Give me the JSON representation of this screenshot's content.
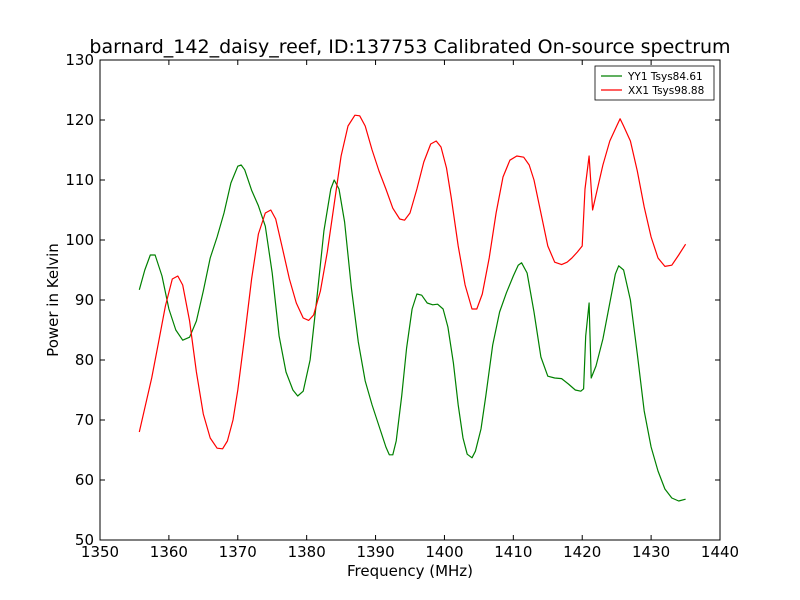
{
  "chart_data": {
    "type": "line",
    "title": "barnard_142_daisy_reef, ID:137753 Calibrated On-source spectrum",
    "xlabel": "Frequency (MHz)",
    "ylabel": "Power in Kelvin",
    "xlim": [
      1350,
      1440
    ],
    "ylim": [
      50,
      130
    ],
    "xticks": [
      1350,
      1360,
      1370,
      1380,
      1390,
      1400,
      1410,
      1420,
      1430,
      1440
    ],
    "yticks": [
      50,
      60,
      70,
      80,
      90,
      100,
      110,
      120,
      130
    ],
    "grid": false,
    "legend_position": "top-right",
    "series": [
      {
        "name": "YY1 Tsys84.61",
        "color": "#008000",
        "x": [
          1355.7,
          1356.5,
          1357.3,
          1358.0,
          1359.0,
          1360.0,
          1361.0,
          1362.0,
          1363.0,
          1364.0,
          1365.0,
          1366.0,
          1367.0,
          1368.0,
          1369.0,
          1370.0,
          1370.5,
          1371.0,
          1372.0,
          1373.0,
          1374.0,
          1375.0,
          1376.0,
          1377.0,
          1378.0,
          1378.7,
          1379.5,
          1380.5,
          1381.5,
          1382.5,
          1383.5,
          1384.0,
          1384.7,
          1385.5,
          1386.5,
          1387.5,
          1388.5,
          1389.5,
          1390.5,
          1391.5,
          1392.0,
          1392.5,
          1393.0,
          1393.8,
          1394.5,
          1395.3,
          1396.0,
          1396.7,
          1397.5,
          1398.3,
          1399.0,
          1399.8,
          1400.5,
          1401.3,
          1402.0,
          1402.7,
          1403.3,
          1404.0,
          1404.5,
          1405.3,
          1406.0,
          1407.0,
          1408.0,
          1409.0,
          1410.0,
          1410.7,
          1411.2,
          1412.0,
          1413.0,
          1414.0,
          1415.0,
          1416.0,
          1417.0,
          1418.0,
          1419.0,
          1419.8,
          1420.2,
          1420.5,
          1421.0,
          1421.3,
          1422.0,
          1423.0,
          1424.0,
          1424.8,
          1425.3,
          1426.0,
          1427.0,
          1428.0,
          1429.0,
          1430.0,
          1431.0,
          1432.0,
          1433.0,
          1434.0,
          1435.0
        ],
        "y": [
          91.7,
          95.0,
          97.5,
          97.5,
          94.0,
          88.5,
          85.0,
          83.3,
          83.8,
          86.5,
          91.5,
          97.0,
          100.5,
          104.5,
          109.5,
          112.3,
          112.5,
          111.7,
          108.3,
          105.7,
          102.3,
          94.5,
          84.0,
          78.0,
          75.0,
          74.0,
          74.8,
          80.0,
          90.5,
          101.5,
          108.5,
          110.0,
          108.5,
          103.0,
          92.0,
          83.0,
          76.5,
          72.5,
          69.0,
          65.5,
          64.2,
          64.2,
          66.5,
          74.0,
          82.0,
          88.5,
          91.0,
          90.8,
          89.5,
          89.2,
          89.3,
          88.5,
          85.5,
          79.5,
          72.5,
          67.0,
          64.3,
          63.7,
          64.8,
          68.5,
          74.0,
          82.5,
          88.0,
          91.2,
          94.0,
          95.8,
          96.2,
          94.5,
          88.0,
          80.5,
          77.3,
          77.0,
          76.9,
          76.0,
          75.0,
          74.8,
          75.2,
          84.0,
          89.5,
          77.0,
          79.0,
          83.5,
          89.5,
          94.3,
          95.7,
          95.0,
          90.0,
          81.0,
          71.5,
          65.5,
          61.5,
          58.5,
          57.0,
          56.5,
          56.8
        ]
      },
      {
        "name": "XX1 Tsys98.88",
        "color": "#ff0000",
        "x": [
          1355.7,
          1356.5,
          1357.5,
          1358.5,
          1359.5,
          1360.5,
          1361.3,
          1362.0,
          1363.0,
          1364.0,
          1365.0,
          1366.0,
          1367.0,
          1367.8,
          1368.5,
          1369.3,
          1370.0,
          1371.0,
          1372.0,
          1373.0,
          1374.0,
          1374.8,
          1375.5,
          1376.5,
          1377.5,
          1378.5,
          1379.5,
          1380.3,
          1381.0,
          1382.0,
          1383.0,
          1384.0,
          1385.0,
          1386.0,
          1387.0,
          1387.7,
          1388.5,
          1389.5,
          1390.5,
          1391.5,
          1392.5,
          1393.5,
          1394.2,
          1395.0,
          1396.0,
          1397.0,
          1398.0,
          1398.8,
          1399.5,
          1400.3,
          1401.0,
          1402.0,
          1403.0,
          1404.0,
          1404.7,
          1405.5,
          1406.5,
          1407.5,
          1408.5,
          1409.5,
          1410.5,
          1411.5,
          1412.3,
          1413.0,
          1414.0,
          1415.0,
          1416.0,
          1417.0,
          1417.8,
          1418.5,
          1419.3,
          1420.0,
          1420.4,
          1421.0,
          1421.5,
          1422.0,
          1423.0,
          1424.0,
          1425.0,
          1425.5,
          1426.0,
          1427.0,
          1428.0,
          1429.0,
          1430.0,
          1431.0,
          1432.0,
          1433.0,
          1434.0,
          1435.0
        ],
        "y": [
          68.0,
          72.0,
          77.0,
          83.0,
          89.0,
          93.5,
          94.0,
          92.5,
          86.5,
          78.0,
          71.0,
          67.0,
          65.3,
          65.2,
          66.5,
          70.0,
          75.0,
          84.0,
          93.5,
          101.0,
          104.5,
          105.0,
          103.5,
          98.5,
          93.5,
          89.5,
          87.0,
          86.6,
          87.5,
          91.5,
          98.0,
          106.0,
          114.0,
          119.0,
          120.8,
          120.7,
          119.0,
          115.0,
          111.5,
          108.5,
          105.3,
          103.5,
          103.3,
          104.5,
          108.5,
          113.0,
          116.0,
          116.5,
          115.5,
          112.0,
          107.0,
          99.0,
          92.5,
          88.5,
          88.5,
          91.0,
          97.0,
          104.5,
          110.5,
          113.3,
          114.0,
          113.8,
          112.5,
          110.0,
          104.5,
          99.0,
          96.3,
          95.9,
          96.3,
          97.0,
          98.0,
          99.0,
          108.5,
          114.0,
          105.0,
          107.5,
          112.5,
          116.5,
          119.0,
          120.2,
          119.0,
          116.5,
          111.5,
          105.5,
          100.5,
          97.0,
          95.6,
          95.8,
          97.5,
          99.3
        ]
      }
    ]
  }
}
